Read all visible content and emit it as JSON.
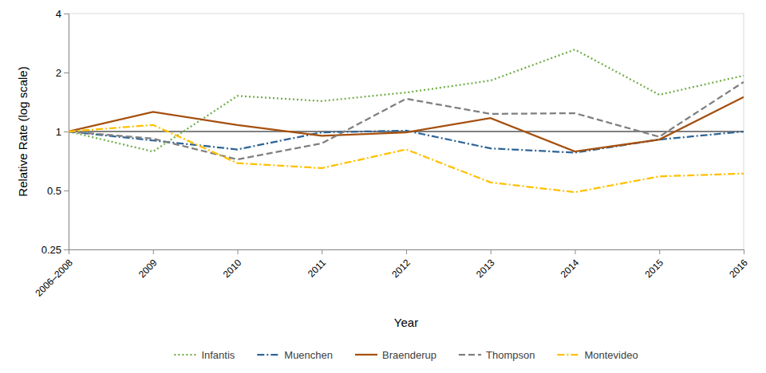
{
  "chart_data": {
    "type": "line",
    "x_label": "Year",
    "y_label": "Relative Rate (log scale)",
    "categories": [
      "2006–2008",
      "2009",
      "2010",
      "2011",
      "2012",
      "2013",
      "2014",
      "2015",
      "2016"
    ],
    "series": [
      {
        "name": "Infantis",
        "color": "#70ad47",
        "line_style": "dotted",
        "values": [
          1,
          0.79,
          1.52,
          1.43,
          1.58,
          1.82,
          2.62,
          1.54,
          1.93
        ]
      },
      {
        "name": "Muenchen",
        "color": "#2e6496",
        "line_style": "dashdot",
        "values": [
          1,
          0.9,
          0.81,
          0.99,
          1.01,
          0.82,
          0.78,
          0.91,
          1.0
        ]
      },
      {
        "name": "Braenderup",
        "color": "#a5500f",
        "line_style": "solid",
        "values": [
          1,
          1.26,
          1.08,
          0.95,
          0.99,
          1.17,
          0.79,
          0.91,
          1.5
        ]
      },
      {
        "name": "Thompson",
        "color": "#7f7f7f",
        "line_style": "dashed",
        "values": [
          1,
          0.92,
          0.72,
          0.87,
          1.47,
          1.23,
          1.24,
          0.94,
          1.79
        ]
      },
      {
        "name": "Montevideo",
        "color": "#ffc000",
        "line_style": "dashdot",
        "values": [
          1,
          1.08,
          0.69,
          0.65,
          0.81,
          0.55,
          0.49,
          0.59,
          0.61
        ]
      }
    ],
    "ylim": [
      0.25,
      4
    ],
    "yticks": [
      0.25,
      0.5,
      1,
      2,
      4
    ],
    "log": "y",
    "grid": false,
    "reference_line": 1,
    "legend": "bottom"
  }
}
